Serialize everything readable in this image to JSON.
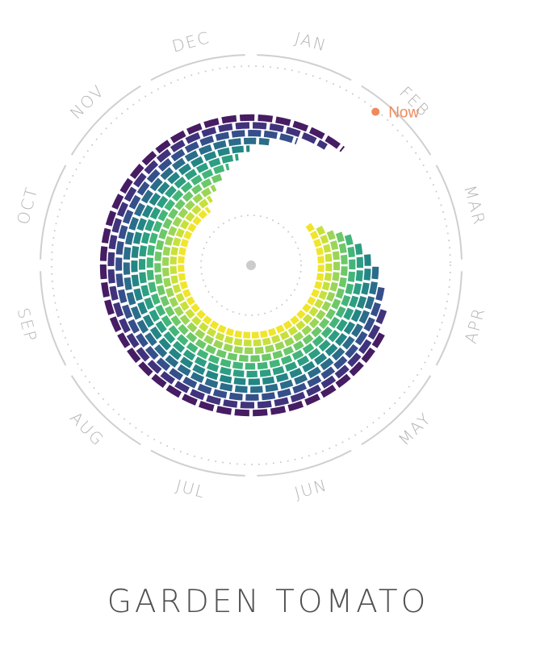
{
  "chart_data": {
    "type": "radial-heatmap",
    "title": "GARDEN TOMATO",
    "month_labels": [
      "JAN",
      "FEB",
      "MAR",
      "APR",
      "MAY",
      "JUN",
      "JUL",
      "AUG",
      "SEP",
      "OCT",
      "NOV",
      "DEC"
    ],
    "now_label": "Now",
    "now_month": 1.3,
    "rings": 11,
    "start_month": [
      1.8,
      2.0,
      2.2,
      2.3,
      2.4,
      2.6,
      2.8,
      3.0,
      3.3,
      3.6,
      3.9
    ],
    "end_month": [
      10.8,
      11.0,
      11.2,
      11.4,
      11.6,
      11.8,
      12.0,
      12.3,
      12.7,
      13.1,
      13.3
    ],
    "palette": [
      "#f0e52a",
      "#c8e03a",
      "#9ad558",
      "#6cc868",
      "#44b57a",
      "#2d9e82",
      "#248585",
      "#2b6c8a",
      "#354f8a",
      "#40337c",
      "#461c63"
    ],
    "now_color": "#ef8a5c",
    "grid_color": "#cfcfcf"
  }
}
